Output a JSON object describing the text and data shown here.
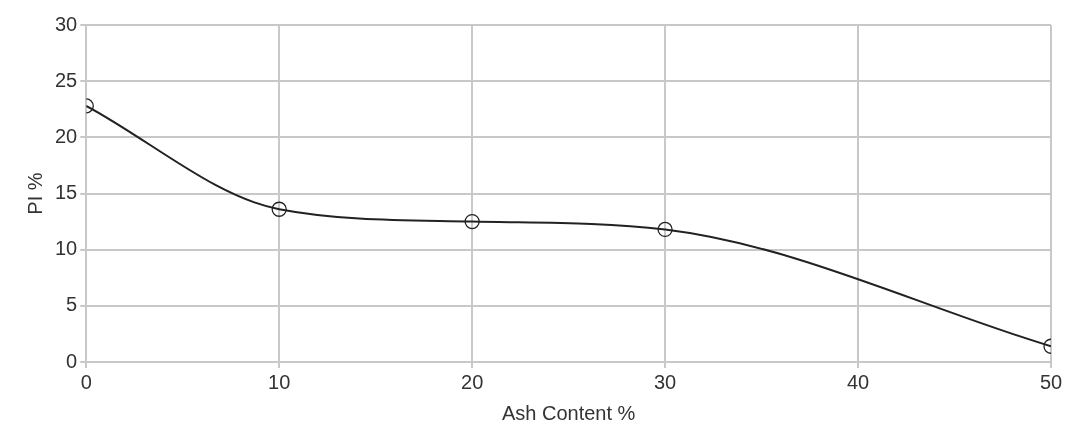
{
  "chart_data": {
    "type": "line",
    "xlabel": "Ash Content %",
    "ylabel": "PI %",
    "x": [
      0,
      10,
      20,
      30,
      50
    ],
    "series": [
      {
        "color": "#222222",
        "values": [
          22.8,
          13.6,
          12.5,
          11.8,
          1.4
        ]
      }
    ],
    "xlim": [
      0,
      50
    ],
    "xticks": [
      0,
      10,
      20,
      30,
      40,
      50
    ],
    "ylim": [
      0,
      30
    ],
    "yticks": [
      0,
      5,
      10,
      15,
      20,
      25,
      30
    ],
    "grid": true,
    "legend": false,
    "marker": "circle",
    "line_style": "solid"
  }
}
